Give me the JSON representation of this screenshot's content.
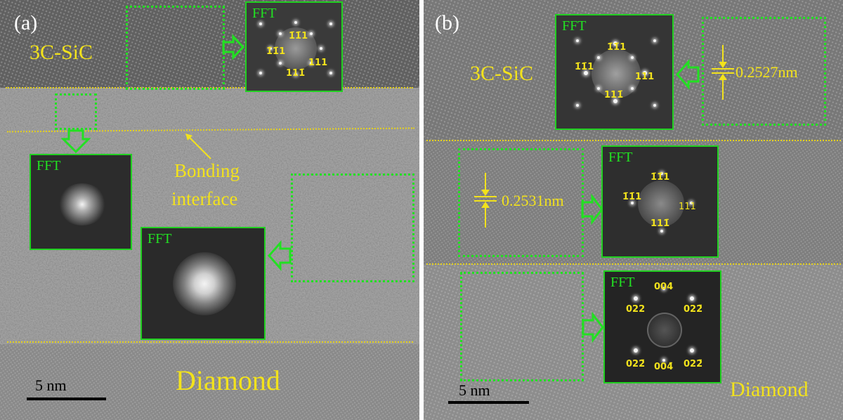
{
  "panels": {
    "a": {
      "label": "(a)",
      "sic_label": "3C-SiC",
      "diamond_label": "Diamond",
      "bonding_label_line1": "Bonding",
      "bonding_label_line2": "interface",
      "scale_text": "5 nm",
      "fft_label": "FFT",
      "fft_sic_indices": {
        "top": "1̄1̄1",
        "left": "1̄1̄1",
        "right": "111",
        "bottom": "111̄"
      }
    },
    "b": {
      "label": "(b)",
      "sic_label": "3C-SiC",
      "diamond_label": "Diamond",
      "scale_text": "5 nm",
      "fft_label": "FFT",
      "spacing_top": "0.2527nm",
      "spacing_mid": "0.2531nm",
      "fft_top_indices": {
        "top": "1̄1̄1",
        "left": "1̄1̄1",
        "right": "111",
        "bottom": "111̄"
      },
      "fft_mid_indices": {
        "top": "1̄1̄1",
        "left": "1̄1̄1",
        "right": "111",
        "bottom": "111̄"
      },
      "fft_diamond_indices": {
        "top": "004",
        "upper_left": "022",
        "upper_right": "022̄",
        "lower_left": "022̄",
        "lower_right": "022̄",
        "bottom": "004̄"
      }
    }
  },
  "colors": {
    "annotation_yellow": "#f2e21c",
    "frame_green": "#22e022",
    "scale_black": "#000000"
  }
}
